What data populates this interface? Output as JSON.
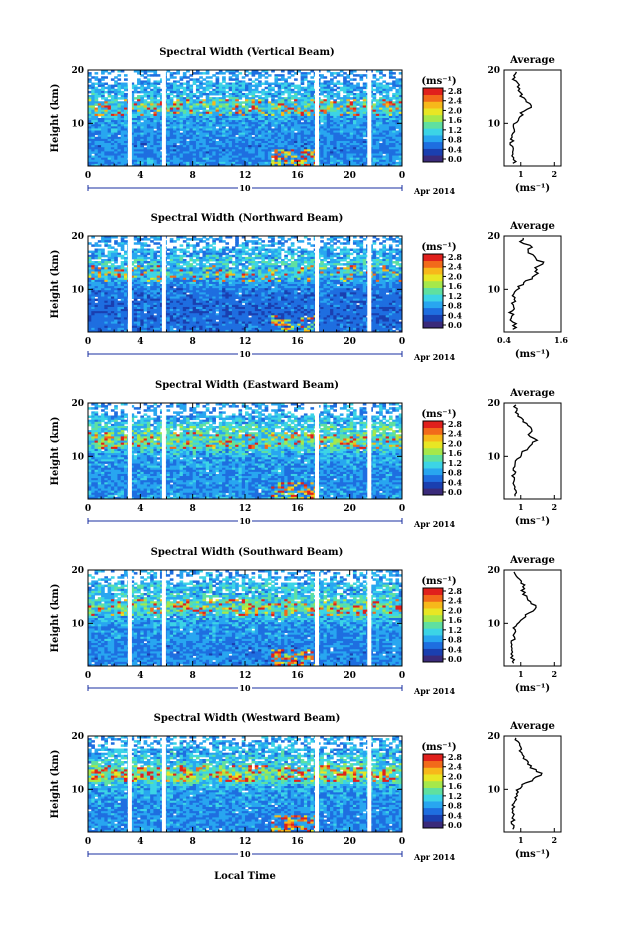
{
  "colors": {
    "colorbar": [
      "#3a2a7a",
      "#1a3fb0",
      "#1e6ee0",
      "#28a6f0",
      "#3cd4e6",
      "#5fe0a0",
      "#a6e84a",
      "#e8e624",
      "#f7b81a",
      "#f26a1a",
      "#e0201c"
    ],
    "background_field": "#2a4fc2",
    "axis": "#000000",
    "profile_line": "#000000"
  },
  "figure": {
    "xlabel_global": "Local Time",
    "date_label": "Apr 2014",
    "day_label": "10",
    "colorbar_unit": "(ms⁻¹)",
    "average_title": "Average",
    "average_xunit": "(ms⁻¹)"
  },
  "chart_data": [
    {
      "type": "heatmap",
      "title": "Spectral Width (Vertical Beam)",
      "ylabel": "Height (km)",
      "x_ticks": [
        "0",
        "4",
        "8",
        "12",
        "16",
        "20",
        "0"
      ],
      "y_ticks": [
        "10",
        "20"
      ],
      "xlim": [
        0,
        24
      ],
      "ylim": [
        2,
        20
      ],
      "colorbar_ticks": [
        "0.0",
        "0.4",
        "0.8",
        "1.2",
        "1.6",
        "2.0",
        "2.4",
        "2.8"
      ],
      "colorbar_range": [
        0,
        2.8
      ],
      "data_gaps_hours": [
        3.2,
        5.8,
        17.5,
        21.5
      ],
      "average_profile": {
        "x_ticks": [
          "1",
          "2"
        ],
        "xlim": [
          0.5,
          2.2
        ],
        "height_km": [
          3,
          5,
          7,
          9,
          10,
          11,
          12,
          13,
          14,
          15,
          16,
          17,
          18,
          19,
          20
        ],
        "values": [
          0.8,
          0.72,
          0.75,
          0.8,
          0.85,
          0.95,
          1.05,
          1.3,
          1.2,
          1.05,
          0.92,
          0.95,
          0.82,
          0.78,
          0.85
        ]
      }
    },
    {
      "type": "heatmap",
      "title": "Spectral Width (Northward Beam)",
      "ylabel": "Height (km)",
      "x_ticks": [
        "0",
        "4",
        "8",
        "12",
        "16",
        "20",
        "0"
      ],
      "y_ticks": [
        "10",
        "20"
      ],
      "xlim": [
        0,
        24
      ],
      "ylim": [
        2,
        20
      ],
      "colorbar_ticks": [
        "0.0",
        "0.4",
        "0.8",
        "1.2",
        "1.6",
        "2.0",
        "2.4",
        "2.8"
      ],
      "colorbar_range": [
        0,
        2.8
      ],
      "data_gaps_hours": [
        3.2,
        5.8,
        17.5,
        21.5
      ],
      "average_profile": {
        "x_ticks": [
          "0.4",
          "1.6"
        ],
        "xlim": [
          0.4,
          1.6
        ],
        "height_km": [
          3,
          5,
          7,
          9,
          10,
          11,
          12,
          13,
          14,
          15,
          16,
          17,
          18,
          19,
          20
        ],
        "values": [
          0.62,
          0.55,
          0.58,
          0.62,
          0.68,
          0.78,
          0.95,
          1.1,
          1.05,
          1.2,
          1.02,
          0.9,
          0.95,
          0.75,
          0.82
        ]
      }
    },
    {
      "type": "heatmap",
      "title": "Spectral Width (Eastward Beam)",
      "ylabel": "Height (km)",
      "x_ticks": [
        "0",
        "4",
        "8",
        "12",
        "16",
        "20",
        "0"
      ],
      "y_ticks": [
        "10",
        "20"
      ],
      "xlim": [
        0,
        24
      ],
      "ylim": [
        2,
        20
      ],
      "colorbar_ticks": [
        "0.0",
        "0.4",
        "0.8",
        "1.2",
        "1.6",
        "2.0",
        "2.4",
        "2.8"
      ],
      "colorbar_range": [
        0,
        2.8
      ],
      "data_gaps_hours": [
        3.2,
        5.8,
        17.5,
        21.5
      ],
      "average_profile": {
        "x_ticks": [
          "1",
          "2"
        ],
        "xlim": [
          0.5,
          2.2
        ],
        "height_km": [
          3,
          5,
          7,
          9,
          10,
          11,
          12,
          13,
          14,
          15,
          16,
          17,
          18,
          19,
          20
        ],
        "values": [
          0.82,
          0.78,
          0.8,
          0.85,
          0.95,
          1.1,
          1.3,
          1.45,
          1.25,
          1.35,
          1.15,
          1.0,
          0.92,
          0.85,
          0.78
        ]
      }
    },
    {
      "type": "heatmap",
      "title": "Spectral Width (Southward Beam)",
      "ylabel": "Height (km)",
      "x_ticks": [
        "0",
        "4",
        "8",
        "12",
        "16",
        "20",
        "0"
      ],
      "y_ticks": [
        "10",
        "20"
      ],
      "xlim": [
        0,
        24
      ],
      "ylim": [
        2,
        20
      ],
      "colorbar_ticks": [
        "0.0",
        "0.4",
        "0.8",
        "1.2",
        "1.6",
        "2.0",
        "2.4",
        "2.8"
      ],
      "colorbar_range": [
        0,
        2.8
      ],
      "data_gaps_hours": [
        3.2,
        5.8,
        17.5,
        21.5
      ],
      "average_profile": {
        "x_ticks": [
          "1",
          "2"
        ],
        "xlim": [
          0.5,
          2.2
        ],
        "height_km": [
          3,
          5,
          7,
          9,
          10,
          11,
          12,
          13,
          14,
          15,
          16,
          17,
          18,
          19,
          20
        ],
        "values": [
          0.75,
          0.72,
          0.78,
          0.82,
          0.9,
          1.05,
          1.25,
          1.5,
          1.3,
          1.15,
          1.05,
          1.1,
          0.95,
          0.88,
          0.8
        ]
      }
    },
    {
      "type": "heatmap",
      "title": "Spectral Width (Westward Beam)",
      "ylabel": "Height (km)",
      "x_ticks": [
        "0",
        "4",
        "8",
        "12",
        "16",
        "20",
        "0"
      ],
      "y_ticks": [
        "10",
        "20"
      ],
      "xlim": [
        0,
        24
      ],
      "ylim": [
        2,
        20
      ],
      "colorbar_ticks": [
        "0.0",
        "0.4",
        "0.8",
        "1.2",
        "1.6",
        "2.0",
        "2.4",
        "2.8"
      ],
      "colorbar_range": [
        0,
        2.8
      ],
      "data_gaps_hours": [
        3.2,
        5.8,
        17.5,
        21.5
      ],
      "average_profile": {
        "x_ticks": [
          "1",
          "2"
        ],
        "xlim": [
          0.5,
          2.2
        ],
        "height_km": [
          3,
          5,
          7,
          9,
          10,
          11,
          12,
          13,
          14,
          15,
          16,
          17,
          18,
          19,
          20
        ],
        "values": [
          0.78,
          0.75,
          0.8,
          0.85,
          0.92,
          1.1,
          1.45,
          1.6,
          1.35,
          1.2,
          1.05,
          1.0,
          0.95,
          0.88,
          0.82
        ]
      }
    }
  ]
}
